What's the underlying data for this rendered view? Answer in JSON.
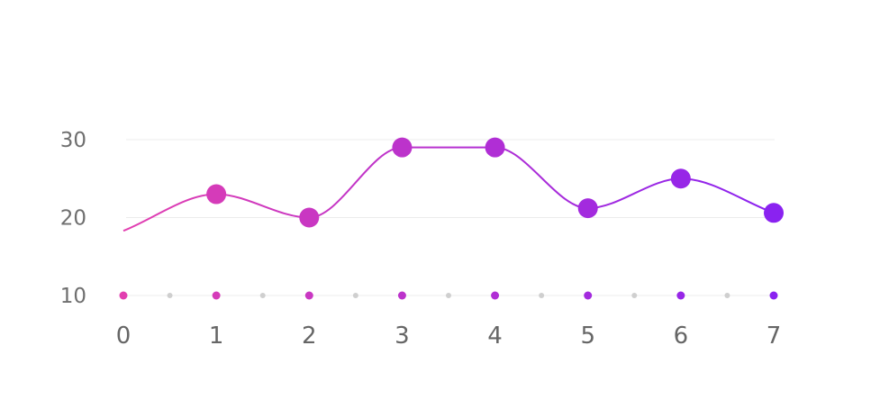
{
  "chart_data": {
    "type": "line",
    "title": "",
    "xlabel": "",
    "ylabel": "",
    "x": [
      0,
      1,
      2,
      3,
      4,
      5,
      6,
      7
    ],
    "x_tick_labels": [
      "0",
      "1",
      "2",
      "3",
      "4",
      "5",
      "6",
      "7"
    ],
    "y_tick_labels": [
      "30",
      "20",
      "10"
    ],
    "y_ticks": [
      30,
      20,
      10
    ],
    "xlim": [
      0,
      7
    ],
    "ylim": [
      10,
      30
    ],
    "grid": true,
    "legend": "none",
    "smooth": true,
    "series": [
      {
        "line_start_value": 18.3,
        "values": [
          null,
          23,
          20,
          29,
          29,
          21.2,
          25,
          20.6
        ]
      }
    ],
    "gradient": {
      "start": "#e23fb0",
      "end": "#8a22f0"
    },
    "baseline_dot_color": "#cfcfcf"
  }
}
